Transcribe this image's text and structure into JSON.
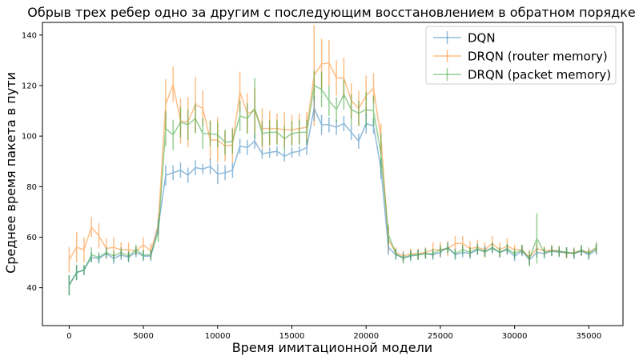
{
  "chart_data": {
    "type": "line",
    "title": "Обрыв трех ребер одно за другим с последующим восстановлением в обратном порядке",
    "xlabel": "Время имитационной модели",
    "ylabel": "Среднее время пакета в пути",
    "xlim": [
      -1800,
      37300
    ],
    "ylim": [
      25,
      145
    ],
    "xticks": [
      0,
      5000,
      10000,
      15000,
      20000,
      25000,
      30000,
      35000
    ],
    "yticks": [
      40,
      60,
      80,
      100,
      120,
      140
    ],
    "grid": false,
    "legend_position": "top-right",
    "x": [
      0,
      500,
      1000,
      1500,
      2000,
      2500,
      3000,
      3500,
      4000,
      4500,
      5000,
      5500,
      6000,
      6500,
      7000,
      7500,
      8000,
      8500,
      9000,
      9500,
      10000,
      10500,
      11000,
      11500,
      12000,
      12500,
      13000,
      13500,
      14000,
      14500,
      15000,
      15500,
      16000,
      16500,
      17000,
      17500,
      18000,
      18500,
      19000,
      19500,
      20000,
      20500,
      21000,
      21500,
      22000,
      22500,
      23000,
      23500,
      24000,
      24500,
      25000,
      25500,
      26000,
      26500,
      27000,
      27500,
      28000,
      28500,
      29000,
      29500,
      30000,
      30500,
      31000,
      31500,
      32000,
      32500,
      33000,
      33500,
      34000,
      34500,
      35000,
      35500
    ],
    "series": [
      {
        "name": "DQN",
        "color": "#1f77b4",
        "values": [
          41,
          46,
          47,
          52,
          51.5,
          53.5,
          51.5,
          53,
          52,
          54,
          52.5,
          52.5,
          64,
          84.5,
          85.5,
          86.5,
          84.5,
          87.5,
          87,
          88,
          85,
          85.5,
          86.5,
          96,
          95.5,
          98,
          93,
          93.5,
          94,
          92,
          93.5,
          94,
          95.5,
          111,
          104.5,
          104.5,
          103.5,
          105,
          101.5,
          98,
          105,
          104,
          87,
          56,
          53,
          52,
          52.5,
          53,
          53.5,
          53,
          54,
          56,
          53,
          54,
          53.5,
          55,
          54.5,
          55.5,
          54,
          55,
          52.5,
          54.5,
          51,
          54,
          53.5,
          54.5,
          54,
          54,
          53.5,
          54.5,
          53,
          55
        ],
        "errors": [
          4,
          3,
          2,
          2,
          2,
          2,
          2,
          2,
          2,
          2,
          2,
          2,
          3,
          4,
          3,
          3,
          3,
          3,
          2,
          3,
          4,
          3,
          3,
          3,
          3,
          3,
          2,
          2,
          2,
          2,
          2,
          2,
          3,
          5,
          4,
          3,
          3,
          3,
          3,
          3,
          4,
          3,
          4,
          3,
          2,
          2,
          2,
          2,
          2,
          2,
          2,
          2,
          2,
          2,
          2,
          2,
          2,
          2,
          2,
          2,
          2,
          2,
          2,
          2,
          2,
          2,
          2,
          2,
          2,
          2,
          2,
          2
        ]
      },
      {
        "name": "DRQN (router memory)",
        "color": "#ff7f0e",
        "values": [
          51,
          56,
          55,
          64,
          60.5,
          55.5,
          56,
          55,
          55,
          54.5,
          57,
          54.5,
          65,
          112.5,
          120.5,
          106,
          105.5,
          112.5,
          111,
          98.5,
          98.5,
          96,
          96.5,
          117.5,
          109,
          110,
          103,
          103,
          103,
          102.5,
          102.5,
          103,
          103.5,
          124,
          128.5,
          129,
          123,
          123,
          114,
          111,
          116,
          119,
          99,
          59,
          54,
          52.5,
          53.5,
          53.5,
          54,
          55,
          55,
          55.5,
          57.5,
          57.5,
          55.5,
          56,
          55,
          57.5,
          55,
          56.5,
          55,
          55,
          52,
          55.5,
          54.5,
          55,
          54.5,
          53.5,
          54,
          54.5,
          54,
          55.5
        ],
        "errors": [
          5,
          6,
          5,
          4,
          5,
          4,
          4,
          3,
          3,
          2,
          3,
          3,
          4,
          10,
          7,
          9,
          10,
          11,
          7,
          8,
          9,
          6,
          7,
          8,
          8,
          9,
          8,
          7,
          6,
          7,
          6,
          6,
          6,
          20,
          10,
          9,
          7,
          8,
          7,
          7,
          8,
          6,
          6,
          5,
          2,
          2,
          2,
          2,
          2,
          3,
          3,
          3,
          3,
          3,
          3,
          3,
          3,
          3,
          3,
          3,
          2,
          2,
          3,
          2,
          2,
          2,
          2,
          2,
          2,
          2,
          2,
          2
        ]
      },
      {
        "name": "DRQN (packet memory)",
        "color": "#2ca02c",
        "values": [
          41,
          46,
          47,
          53,
          52,
          54,
          52.5,
          54,
          52.5,
          55,
          53,
          53,
          62,
          103,
          100.5,
          105.5,
          104.5,
          107,
          101,
          101,
          100.5,
          97.5,
          98,
          108,
          107,
          111,
          101,
          101.5,
          101.5,
          99,
          101,
          101.5,
          101.5,
          120,
          118.5,
          114,
          110.5,
          116.5,
          110.5,
          109,
          110.5,
          110,
          93,
          61,
          53.5,
          51.5,
          53,
          53,
          53.5,
          53.5,
          55,
          55.5,
          53.5,
          55,
          54,
          55.5,
          54,
          56,
          54,
          55.5,
          53.5,
          55,
          51.5,
          59.5,
          54,
          54.5,
          54.5,
          54,
          53.5,
          55,
          53.5,
          56
        ],
        "errors": [
          4,
          3,
          2,
          3,
          2,
          2,
          2,
          2,
          2,
          2,
          2,
          2,
          4,
          7,
          6,
          6,
          6,
          6,
          6,
          5,
          5,
          5,
          5,
          6,
          6,
          12,
          5,
          5,
          5,
          5,
          5,
          5,
          5,
          6,
          7,
          6,
          5,
          6,
          6,
          5,
          7,
          6,
          8,
          4,
          2,
          2,
          2,
          2,
          2,
          2,
          2,
          2,
          2,
          2,
          2,
          2,
          2,
          2,
          2,
          2,
          2,
          2,
          3,
          10,
          2,
          2,
          2,
          2,
          2,
          2,
          2,
          2
        ]
      }
    ]
  }
}
